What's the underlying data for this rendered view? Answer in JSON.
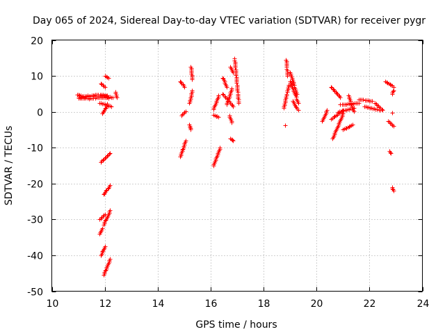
{
  "chart_data": {
    "type": "scatter",
    "title": "Day 065 of 2024, Sidereal Day-to-day VTEC variation (SDTVAR) for receiver pygr",
    "xlabel": "GPS time / hours",
    "ylabel": "SDTVAR / TECUs",
    "xlim": [
      10,
      24
    ],
    "ylim": [
      -50,
      20
    ],
    "xticks": [
      10,
      12,
      14,
      16,
      18,
      20,
      22,
      24
    ],
    "yticks": [
      -50,
      -40,
      -30,
      -20,
      -10,
      0,
      10,
      20
    ],
    "grid": true,
    "marker": "plus",
    "color": "#ff0000",
    "series": [
      {
        "name": "SDTVAR",
        "segments": [
          [
            [
              11.0,
              4.2
            ],
            [
              11.35,
              4.5
            ],
            [
              11.7,
              4.4
            ],
            [
              12.05,
              4.3
            ],
            [
              12.3,
              4.0
            ]
          ],
          [
            [
              10.95,
              4.8
            ],
            [
              11.3,
              4.2
            ],
            [
              11.7,
              4.8
            ],
            [
              12.1,
              4.6
            ]
          ],
          [
            [
              11.0,
              3.8
            ],
            [
              11.4,
              3.7
            ],
            [
              11.8,
              4.0
            ],
            [
              12.15,
              3.9
            ]
          ],
          [
            [
              11.8,
              2.5
            ],
            [
              12.25,
              1.5
            ]
          ],
          [
            [
              11.9,
              -0.5
            ],
            [
              12.1,
              2.2
            ]
          ],
          [
            [
              11.85,
              7.8
            ],
            [
              12.0,
              7.0
            ]
          ],
          [
            [
              12.0,
              10.0
            ],
            [
              12.15,
              9.5
            ]
          ],
          [
            [
              12.4,
              5.5
            ],
            [
              12.45,
              4.0
            ]
          ],
          [
            [
              11.85,
              -14.0
            ],
            [
              12.2,
              -11.5
            ]
          ],
          [
            [
              11.95,
              -23.0
            ],
            [
              12.2,
              -20.5
            ]
          ],
          [
            [
              11.8,
              -30.0
            ],
            [
              12.0,
              -28.5
            ]
          ],
          [
            [
              11.95,
              -31.5
            ],
            [
              12.2,
              -27.5
            ]
          ],
          [
            [
              11.8,
              -34.0
            ],
            [
              11.9,
              -32.5
            ]
          ],
          [
            [
              11.85,
              -40.0
            ],
            [
              12.0,
              -37.5
            ]
          ],
          [
            [
              11.95,
              -45.5
            ],
            [
              12.2,
              -41.0
            ]
          ],
          [
            [
              14.85,
              8.5
            ],
            [
              15.0,
              7.0
            ]
          ],
          [
            [
              14.9,
              -1.0
            ],
            [
              15.05,
              0.2
            ]
          ],
          [
            [
              15.25,
              12.5
            ],
            [
              15.3,
              9.0
            ]
          ],
          [
            [
              15.2,
              2.5
            ],
            [
              15.3,
              6.0
            ]
          ],
          [
            [
              15.2,
              -3.5
            ],
            [
              15.25,
              -5.0
            ]
          ],
          [
            [
              14.85,
              -12.5
            ],
            [
              15.05,
              -8.0
            ]
          ],
          [
            [
              16.1,
              -15.0
            ],
            [
              16.35,
              -10.0
            ]
          ],
          [
            [
              16.1,
              0.8
            ],
            [
              16.3,
              4.5
            ]
          ],
          [
            [
              16.1,
              -0.8
            ],
            [
              16.3,
              -1.5
            ]
          ],
          [
            [
              16.45,
              9.5
            ],
            [
              16.6,
              7.0
            ]
          ],
          [
            [
              16.45,
              5.0
            ],
            [
              16.85,
              1.5
            ]
          ],
          [
            [
              16.6,
              2.0
            ],
            [
              16.8,
              6.5
            ]
          ],
          [
            [
              16.75,
              12.5
            ],
            [
              16.85,
              11.0
            ]
          ],
          [
            [
              16.7,
              -1.0
            ],
            [
              16.8,
              -3.0
            ]
          ],
          [
            [
              16.75,
              -7.5
            ],
            [
              16.85,
              -8.0
            ]
          ],
          [
            [
              16.9,
              14.8
            ],
            [
              17.05,
              2.5
            ]
          ],
          [
            [
              18.75,
              1.0
            ],
            [
              18.95,
              7.5
            ]
          ],
          [
            [
              18.85,
              14.5
            ],
            [
              18.9,
              10.0
            ]
          ],
          [
            [
              18.8,
              -3.8
            ]
          ],
          [
            [
              19.0,
              11.0
            ],
            [
              19.25,
              5.0
            ]
          ],
          [
            [
              19.0,
              8.5
            ],
            [
              19.3,
              2.5
            ]
          ],
          [
            [
              19.1,
              3.0
            ],
            [
              19.3,
              0.5
            ]
          ],
          [
            [
              20.2,
              -2.5
            ],
            [
              20.4,
              0.5
            ]
          ],
          [
            [
              20.55,
              7.0
            ],
            [
              20.9,
              4.0
            ]
          ],
          [
            [
              20.55,
              -2.0
            ],
            [
              21.0,
              0.5
            ]
          ],
          [
            [
              20.6,
              -7.5
            ],
            [
              21.0,
              -0.5
            ]
          ],
          [
            [
              20.8,
              0.0
            ],
            [
              21.4,
              1.0
            ]
          ],
          [
            [
              20.9,
              2.0
            ],
            [
              21.6,
              2.5
            ]
          ],
          [
            [
              21.0,
              -5.0
            ],
            [
              21.35,
              -3.5
            ]
          ],
          [
            [
              21.2,
              4.5
            ],
            [
              21.4,
              0.2
            ]
          ],
          [
            [
              21.6,
              3.5
            ],
            [
              22.1,
              3.0
            ]
          ],
          [
            [
              21.8,
              1.5
            ],
            [
              22.4,
              0.5
            ]
          ],
          [
            [
              22.2,
              2.5
            ],
            [
              22.5,
              0.5
            ]
          ],
          [
            [
              22.6,
              8.5
            ],
            [
              22.9,
              7.0
            ]
          ],
          [
            [
              22.7,
              -2.5
            ],
            [
              22.9,
              -4.0
            ]
          ],
          [
            [
              22.75,
              -11.0
            ],
            [
              22.8,
              -11.5
            ]
          ],
          [
            [
              22.85,
              -21.0
            ],
            [
              22.9,
              -22.0
            ]
          ],
          [
            [
              22.85,
              5.0
            ],
            [
              22.9,
              6.0
            ]
          ],
          [
            [
              22.85,
              -0.3
            ]
          ]
        ]
      }
    ]
  }
}
